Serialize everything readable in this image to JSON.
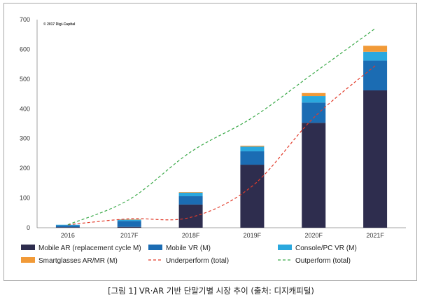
{
  "chart_data": {
    "type": "bar",
    "stacked": true,
    "categories": [
      "2016",
      "2017F",
      "2018F",
      "2019F",
      "2020F",
      "2021F"
    ],
    "ylim": [
      0,
      700
    ],
    "yticks": [
      0,
      100,
      200,
      300,
      400,
      500,
      600,
      700
    ],
    "grid": false,
    "legend_position": "bottom",
    "annotation": "© 2017 Digi-Capital",
    "series": [
      {
        "name": "Mobile AR (replacement cycle M)",
        "kind": "bar",
        "color": "#2e2d4e",
        "values": [
          2,
          3,
          78,
          212,
          353,
          462
        ]
      },
      {
        "name": "Mobile VR (M)",
        "kind": "bar",
        "color": "#1b6cb3",
        "values": [
          6,
          20,
          28,
          45,
          68,
          100
        ]
      },
      {
        "name": "Console/PC VR (M)",
        "kind": "bar",
        "color": "#2aa8de",
        "values": [
          2,
          4,
          12,
          16,
          22,
          30
        ]
      },
      {
        "name": "Smartglasses AR/MR (M)",
        "kind": "bar",
        "color": "#f19a38",
        "values": [
          0,
          1,
          2,
          3,
          10,
          20
        ]
      },
      {
        "name": "Underperform (total)",
        "kind": "line",
        "style": "dashed",
        "color": "#e23b2a",
        "values": [
          10,
          30,
          35,
          140,
          370,
          545
        ]
      },
      {
        "name": "Outperform (total)",
        "kind": "line",
        "style": "dashed",
        "color": "#3caa4a",
        "values": [
          10,
          95,
          255,
          370,
          520,
          670
        ]
      }
    ]
  },
  "legend_items": [
    {
      "label": "Mobile AR (replacement cycle M)",
      "kind": "bar",
      "color": "#2e2d4e"
    },
    {
      "label": "Mobile VR (M)",
      "kind": "bar",
      "color": "#1b6cb3"
    },
    {
      "label": "Console/PC VR (M)",
      "kind": "bar",
      "color": "#2aa8de"
    },
    {
      "label": "Smartglasses AR/MR (M)",
      "kind": "bar",
      "color": "#f19a38"
    },
    {
      "label": "Underperform (total)",
      "kind": "line",
      "color": "#e23b2a"
    },
    {
      "label": "Outperform (total)",
      "kind": "line",
      "color": "#3caa4a"
    }
  ],
  "caption": "[그림 1] VR·AR 기반 단말기별 시장 추이 (출처: 디지캐피털)"
}
